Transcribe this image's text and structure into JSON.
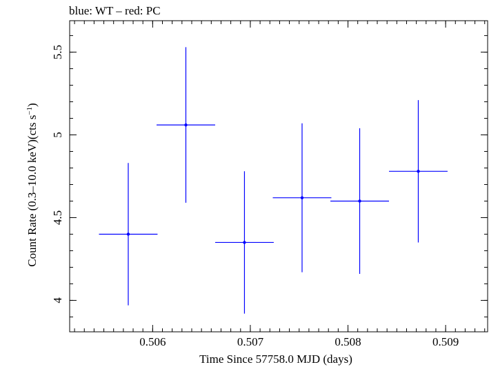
{
  "chart_data": {
    "type": "scatter",
    "title": "blue: WT – red: PC",
    "xlabel": "Time Since 57758.0 MJD (days)",
    "ylabel": {
      "prefix": "Count Rate (0.3–10.0 keV)(cts s",
      "superscript": "−1",
      "suffix": ")"
    },
    "xlim": [
      0.50515,
      0.50943
    ],
    "ylim": [
      3.81,
      5.69
    ],
    "x_ticks": [
      0.506,
      0.507,
      0.508,
      0.509
    ],
    "x_tick_labels": [
      "0.506",
      "0.507",
      "0.508",
      "0.509"
    ],
    "y_ticks": [
      4,
      4.5,
      5,
      5.5
    ],
    "y_tick_labels": [
      "4",
      "4.5",
      "5",
      "5.5"
    ],
    "x_minor_step": 0.0001,
    "y_minor_step": 0.1,
    "grid": false,
    "series": [
      {
        "name": "WT",
        "color": "#0000ff",
        "points": [
          {
            "x": 0.50575,
            "y": 4.4,
            "xerr": 0.0003,
            "yerr": 0.43
          },
          {
            "x": 0.50634,
            "y": 5.06,
            "xerr": 0.0003,
            "yerr": 0.47
          },
          {
            "x": 0.50694,
            "y": 4.35,
            "xerr": 0.0003,
            "yerr": 0.43
          },
          {
            "x": 0.50753,
            "y": 4.62,
            "xerr": 0.0003,
            "yerr": 0.45
          },
          {
            "x": 0.50812,
            "y": 4.6,
            "xerr": 0.0003,
            "yerr": 0.44
          },
          {
            "x": 0.50872,
            "y": 4.78,
            "xerr": 0.0003,
            "yerr": 0.43
          }
        ]
      },
      {
        "name": "PC",
        "color": "#ff0000",
        "points": []
      }
    ]
  }
}
